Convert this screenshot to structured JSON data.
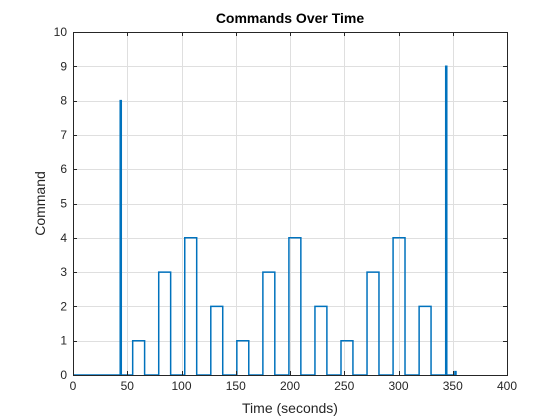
{
  "chart_data": {
    "type": "line",
    "title": "Commands Over Time",
    "xlabel": "Time (seconds)",
    "ylabel": "Command",
    "xlim": [
      0,
      400
    ],
    "ylim": [
      0,
      10
    ],
    "xticks": [
      "0",
      "50",
      "100",
      "150",
      "200",
      "250",
      "300",
      "350",
      "400"
    ],
    "yticks": [
      "0",
      "1",
      "2",
      "3",
      "4",
      "5",
      "6",
      "7",
      "8",
      "9",
      "10"
    ],
    "grid": true,
    "box": true,
    "line_color": "#0072BD",
    "series": [
      {
        "x": [
          0,
          43.5,
          43.5,
          44.5,
          44.5,
          55,
          55,
          66,
          66,
          79,
          79,
          90,
          90,
          103,
          103,
          114,
          114,
          127,
          127,
          138,
          138,
          151,
          151,
          162,
          162,
          175,
          175,
          186,
          186,
          199,
          199,
          210,
          210,
          223,
          223,
          234,
          234,
          247,
          247,
          258,
          258,
          271,
          271,
          282,
          282,
          295,
          295,
          306,
          306,
          319,
          319,
          330,
          330,
          343.5,
          343.5,
          344.5,
          344.5,
          352,
          352,
          353,
          353
        ],
        "y": [
          0,
          0,
          8,
          8,
          0,
          0,
          1,
          1,
          0,
          0,
          3,
          3,
          0,
          0,
          4,
          4,
          0,
          0,
          2,
          2,
          0,
          0,
          1,
          1,
          0,
          0,
          3,
          3,
          0,
          0,
          4,
          4,
          0,
          0,
          2,
          2,
          0,
          0,
          1,
          1,
          0,
          0,
          3,
          3,
          0,
          0,
          4,
          4,
          0,
          0,
          2,
          2,
          0,
          0,
          9,
          9,
          0,
          0,
          0.1,
          0.1,
          0
        ]
      }
    ]
  }
}
